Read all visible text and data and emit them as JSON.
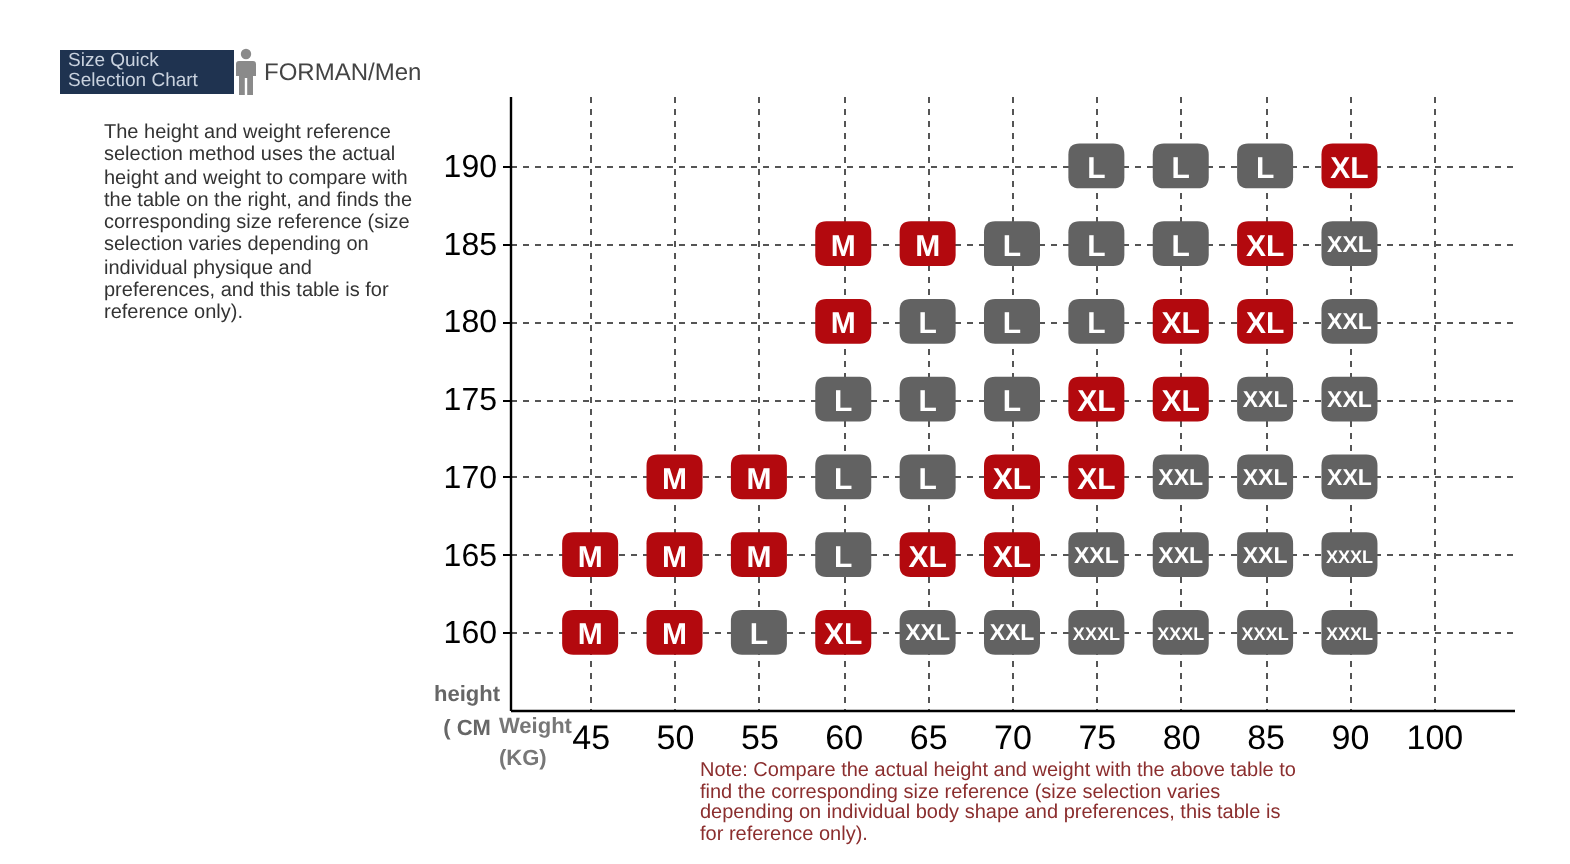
{
  "chart_data": {
    "type": "scatter",
    "title": "Size Quick Selection Chart",
    "subtitle": "FORMAN/Men",
    "xlabel": "Weight (KG)",
    "ylabel": "height ( CM",
    "annotations": [
      "The height and weight reference selection method uses the actual height and weight to compare with the table on the right, and finds the corresponding size reference (size selection varies depending on individual physique and preferences, and this table is for reference only).",
      "Note: Compare the actual height and weight with the above table to find the corresponding size reference (size selection varies depending on individual body shape and preferences, this table is for reference only)."
    ],
    "categories": [
      "45",
      "50",
      "55",
      "60",
      "65",
      "70",
      "75",
      "80",
      "85",
      "90",
      "100"
    ],
    "series": [
      {
        "name": "M",
        "color": "#b3090e",
        "x": [
          "45",
          "45",
          "50",
          "50",
          "50",
          "55",
          "55",
          "60",
          "60",
          "65"
        ],
        "values": [
          165,
          160,
          170,
          165,
          160,
          170,
          165,
          185,
          180,
          185
        ]
      },
      {
        "name": "L",
        "color": "#626262",
        "x": [
          "55",
          "60",
          "60",
          "60",
          "65",
          "65",
          "65",
          "70",
          "70",
          "70",
          "75",
          "75",
          "75",
          "80",
          "80",
          "85"
        ],
        "values": [
          160,
          175,
          170,
          165,
          180,
          175,
          170,
          185,
          180,
          175,
          190,
          185,
          180,
          190,
          185,
          190
        ]
      },
      {
        "name": "XL",
        "color": "#b3090e",
        "x": [
          "60",
          "65",
          "70",
          "70",
          "75",
          "75",
          "80",
          "80",
          "85",
          "85",
          "90"
        ],
        "values": [
          160,
          165,
          170,
          165,
          175,
          170,
          180,
          175,
          185,
          180,
          190
        ]
      },
      {
        "name": "XXL",
        "color": "#626262",
        "x": [
          "65",
          "70",
          "75",
          "80",
          "80",
          "85",
          "85",
          "85",
          "90",
          "90",
          "90",
          "90"
        ],
        "values": [
          160,
          160,
          165,
          170,
          165,
          175,
          170,
          165,
          185,
          180,
          175,
          170
        ]
      },
      {
        "name": "XXXL",
        "color": "#626262",
        "x": [
          "75",
          "80",
          "85",
          "90",
          "90"
        ],
        "values": [
          160,
          160,
          160,
          165,
          160
        ]
      }
    ],
    "ylim": [
      155,
      194.5
    ],
    "yticks": [
      160,
      165,
      170,
      175,
      180,
      185,
      190
    ],
    "grid": true,
    "legend": false,
    "marker": "square"
  }
}
